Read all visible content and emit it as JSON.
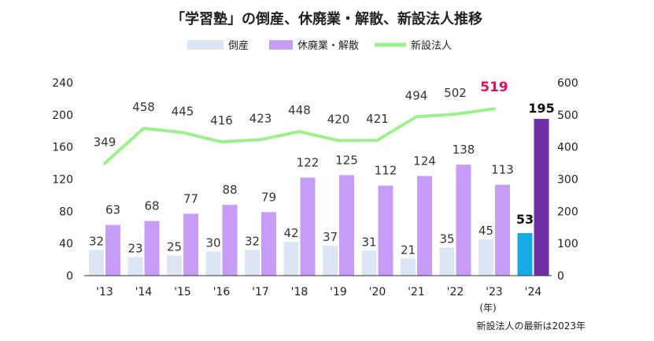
{
  "chart_data": {
    "type": "bar",
    "title": "「学習塾」の倒産、休廃業・解散、新設法人推移",
    "categories": [
      "'13",
      "'14",
      "'15",
      "'16",
      "'17",
      "'18",
      "'19",
      "'20",
      "'21",
      "'22",
      "'23",
      "'24"
    ],
    "x_unit_label": "(年)",
    "left_axis": {
      "min": 0,
      "max": 240,
      "ticks": [
        0,
        40,
        80,
        120,
        160,
        200,
        240
      ]
    },
    "right_axis": {
      "min": 0,
      "max": 600,
      "ticks": [
        0,
        100,
        200,
        300,
        400,
        500,
        600
      ]
    },
    "legend_position": "top",
    "series": [
      {
        "name": "倒産",
        "type": "bar",
        "axis": "left",
        "color": "#dce5f3",
        "highlight_color": "#16abe6",
        "values": [
          32,
          23,
          25,
          30,
          32,
          42,
          37,
          31,
          21,
          35,
          45,
          53
        ]
      },
      {
        "name": "休廃業・解散",
        "type": "bar",
        "axis": "left",
        "color": "#c79cf7",
        "highlight_color": "#6f2fa3",
        "values": [
          63,
          68,
          77,
          88,
          79,
          122,
          125,
          112,
          124,
          138,
          113,
          195
        ]
      },
      {
        "name": "新設法人",
        "type": "line",
        "axis": "right",
        "color": "#9bf28a",
        "highlight_label_color": "#e0105a",
        "values": [
          349,
          458,
          445,
          416,
          423,
          448,
          420,
          421,
          494,
          502,
          519,
          null
        ]
      }
    ],
    "footnote": "新設法人の最新は2023年"
  }
}
